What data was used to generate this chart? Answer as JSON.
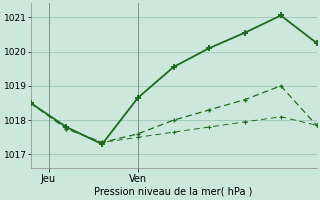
{
  "line1_x": [
    0,
    1,
    2,
    3,
    4,
    5,
    6,
    7,
    8
  ],
  "line1_y": [
    1018.5,
    1017.8,
    1017.3,
    1018.65,
    1019.55,
    1020.1,
    1020.55,
    1021.05,
    1020.25
  ],
  "line2_x": [
    0,
    1,
    2,
    3,
    4,
    5,
    6,
    7,
    8
  ],
  "line2_y": [
    1018.5,
    1017.75,
    1017.35,
    1017.6,
    1018.0,
    1018.3,
    1018.6,
    1019.0,
    1017.85
  ],
  "line3_x": [
    0,
    1,
    2,
    3,
    4,
    5,
    6,
    7,
    8
  ],
  "line3_y": [
    1018.5,
    1017.75,
    1017.35,
    1017.5,
    1017.65,
    1017.8,
    1017.95,
    1018.1,
    1017.85
  ],
  "line_color": "#1e6b1e",
  "bg_color": "#cce8dc",
  "grid_color": "#a0ccbc",
  "ylabel_ticks": [
    1017,
    1018,
    1019,
    1020,
    1021
  ],
  "ylim": [
    1016.6,
    1021.4
  ],
  "xlim": [
    0,
    8
  ],
  "jeu_x": 0.5,
  "ven_x": 3.0,
  "xlabel": "Pression niveau de la mer( hPa )",
  "jeu_label": "Jeu",
  "ven_label": "Ven",
  "figwidth": 3.2,
  "figheight": 2.0,
  "dpi": 100
}
